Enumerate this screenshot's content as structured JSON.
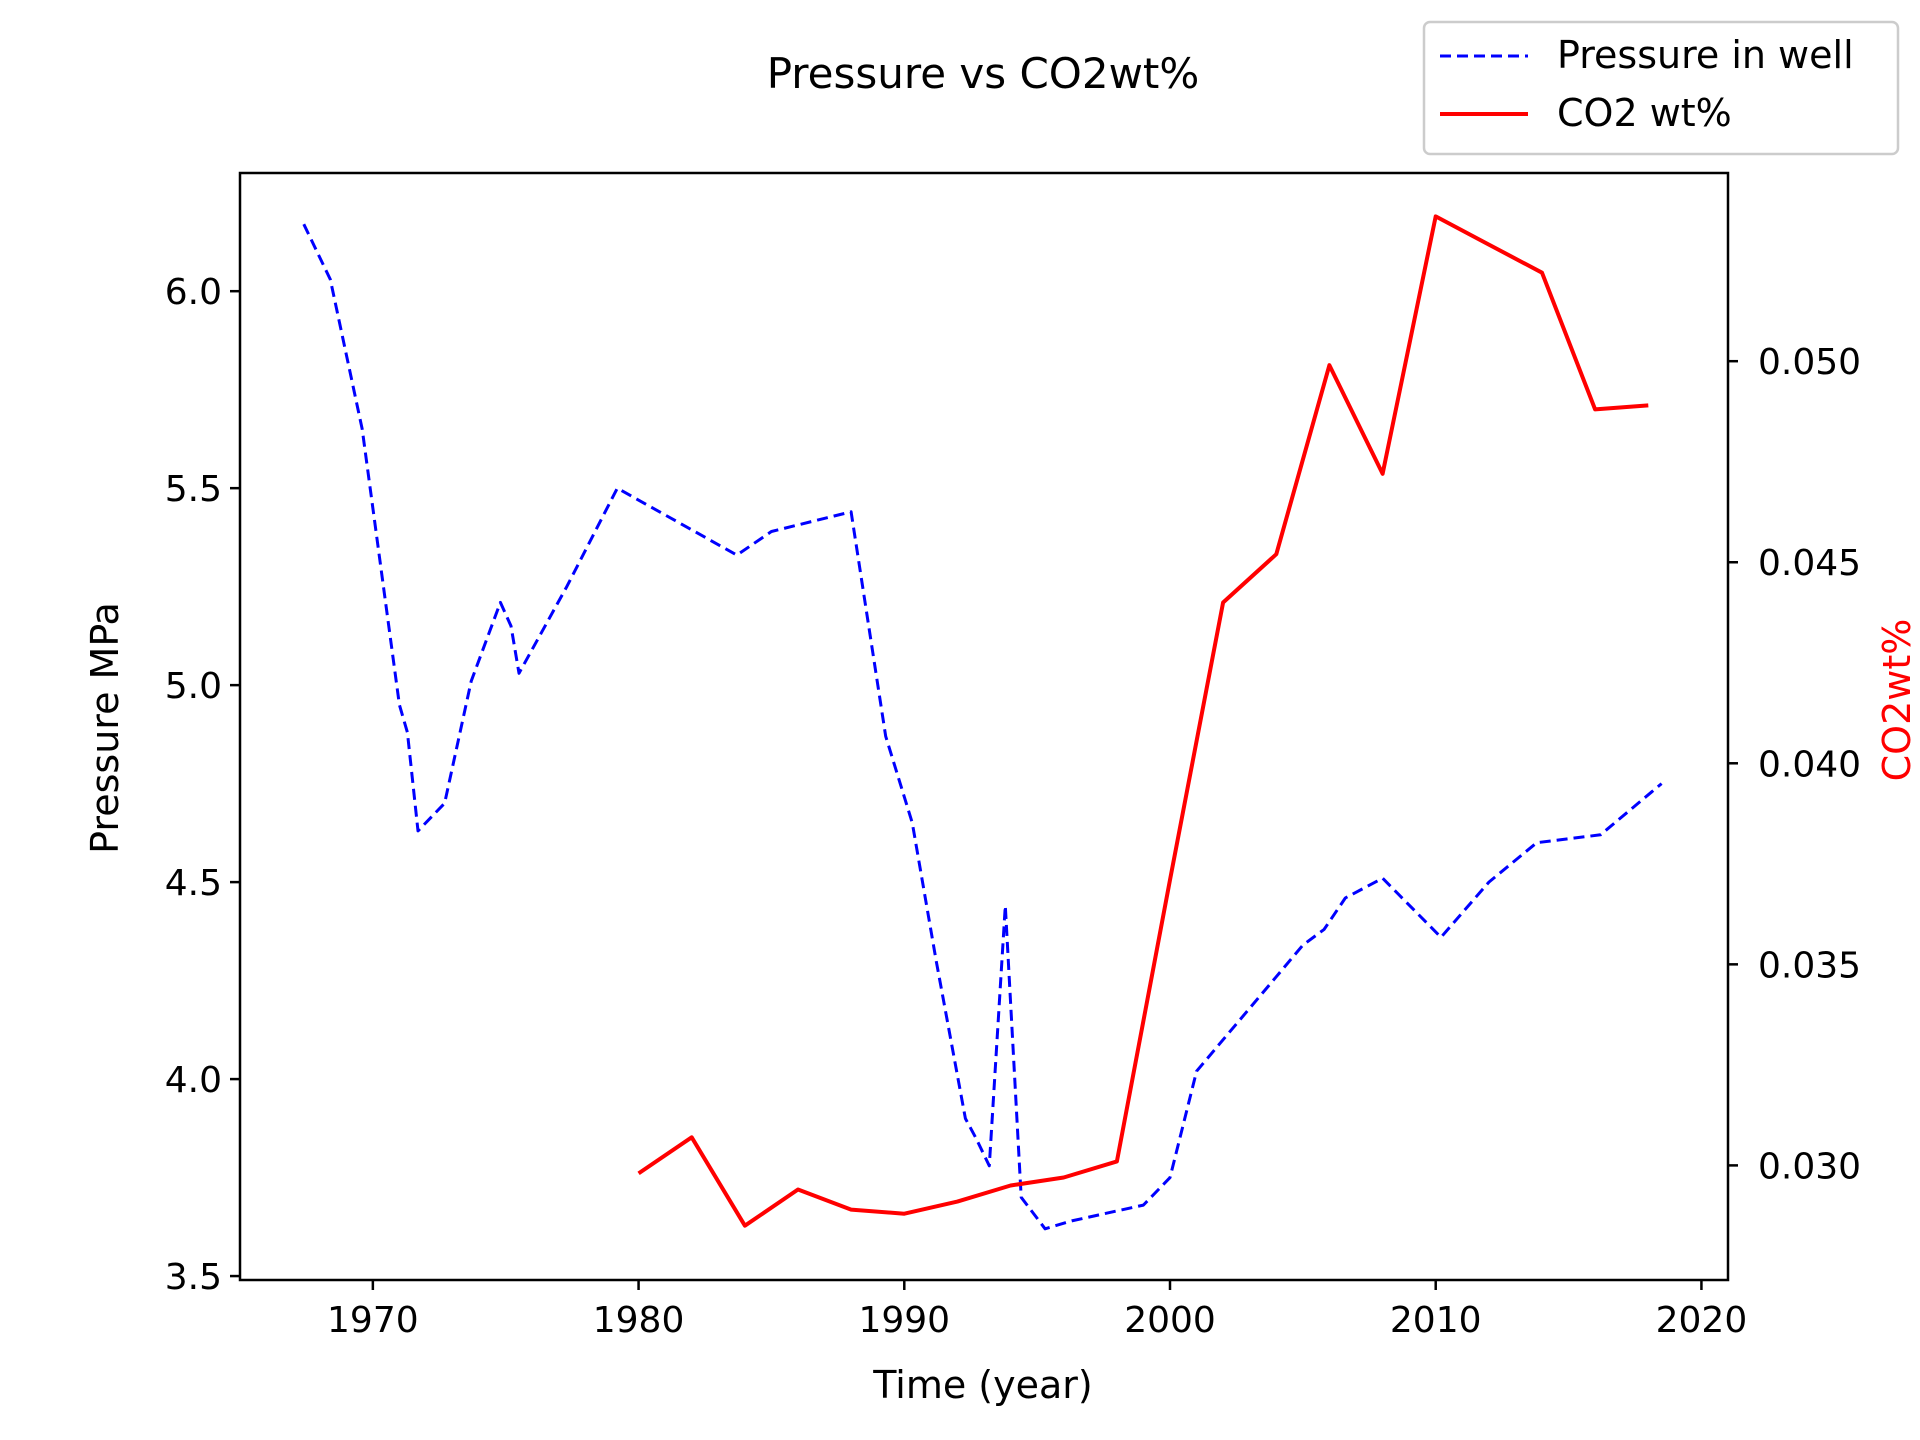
{
  "chart_data": {
    "type": "line",
    "title": "Pressure vs CO2wt%",
    "xlabel": "Time (year)",
    "ylabel": "Pressure MPa",
    "y2label": "CO2wt%",
    "xlim": [
      1965,
      2021
    ],
    "ylim": [
      3.49,
      6.3
    ],
    "y2lim": [
      0.02715,
      0.05468
    ],
    "xticks": [
      1970,
      1980,
      1990,
      2000,
      2010,
      2020
    ],
    "yticks": [
      3.5,
      4.0,
      4.5,
      5.0,
      5.5,
      6.0
    ],
    "y2ticks": [
      0.03,
      0.035,
      0.04,
      0.045,
      0.05
    ],
    "xtick_labels": [
      "1970",
      "1980",
      "1990",
      "2000",
      "2010",
      "2020"
    ],
    "ytick_labels": [
      "3.5",
      "4.0",
      "4.5",
      "5.0",
      "5.5",
      "6.0"
    ],
    "y2tick_labels": [
      "0.030",
      "0.035",
      "0.040",
      "0.045",
      "0.050"
    ],
    "grid": false,
    "legend_position": "top-right",
    "series": [
      {
        "name": "Pressure in well",
        "axis": "left",
        "color": "#0000ff",
        "style": "dashed",
        "x": [
          1967.4,
          1968.4,
          1969.6,
          1970.5,
          1971.0,
          1971.3,
          1971.7,
          1972.7,
          1973.7,
          1974.8,
          1975.2,
          1975.5,
          1977.3,
          1979.2,
          1983.7,
          1985.0,
          1988.0,
          1989.3,
          1990.3,
          1991.2,
          1992.3,
          1992.7,
          1993.2,
          1993.8,
          1994.4,
          1995.3,
          1996.3,
          1999.0,
          2000.0,
          2001.0,
          2002.0,
          2003.0,
          2004.0,
          2005.0,
          2005.8,
          2006.6,
          2008.0,
          2010.2,
          2012.0,
          2013.8,
          2016.2,
          2018.5
        ],
        "y": [
          6.17,
          6.03,
          5.65,
          5.2,
          4.95,
          4.88,
          4.63,
          4.7,
          5.01,
          5.21,
          5.15,
          5.03,
          5.25,
          5.5,
          5.33,
          5.39,
          5.44,
          4.87,
          4.65,
          4.3,
          3.9,
          3.85,
          3.78,
          4.44,
          3.7,
          3.62,
          3.64,
          3.68,
          3.75,
          4.02,
          4.1,
          4.18,
          4.26,
          4.34,
          4.38,
          4.46,
          4.51,
          4.36,
          4.5,
          4.6,
          4.62,
          4.75
        ]
      },
      {
        "name": "CO2 wt%",
        "axis": "right",
        "color": "#ff0000",
        "style": "solid",
        "x": [
          1980,
          1982,
          1984,
          1986,
          1988,
          1990,
          1992,
          1994,
          1996,
          1998,
          2000,
          2002,
          2004,
          2006,
          2008,
          2010,
          2012,
          2014,
          2016,
          2018
        ],
        "y": [
          0.0298,
          0.0307,
          0.0285,
          0.0294,
          0.0289,
          0.0288,
          0.0291,
          0.0295,
          0.0297,
          0.0301,
          0.0371,
          0.044,
          0.0452,
          0.0499,
          0.0472,
          0.0536,
          0.0529,
          0.0522,
          0.0488,
          0.0489
        ]
      }
    ]
  }
}
